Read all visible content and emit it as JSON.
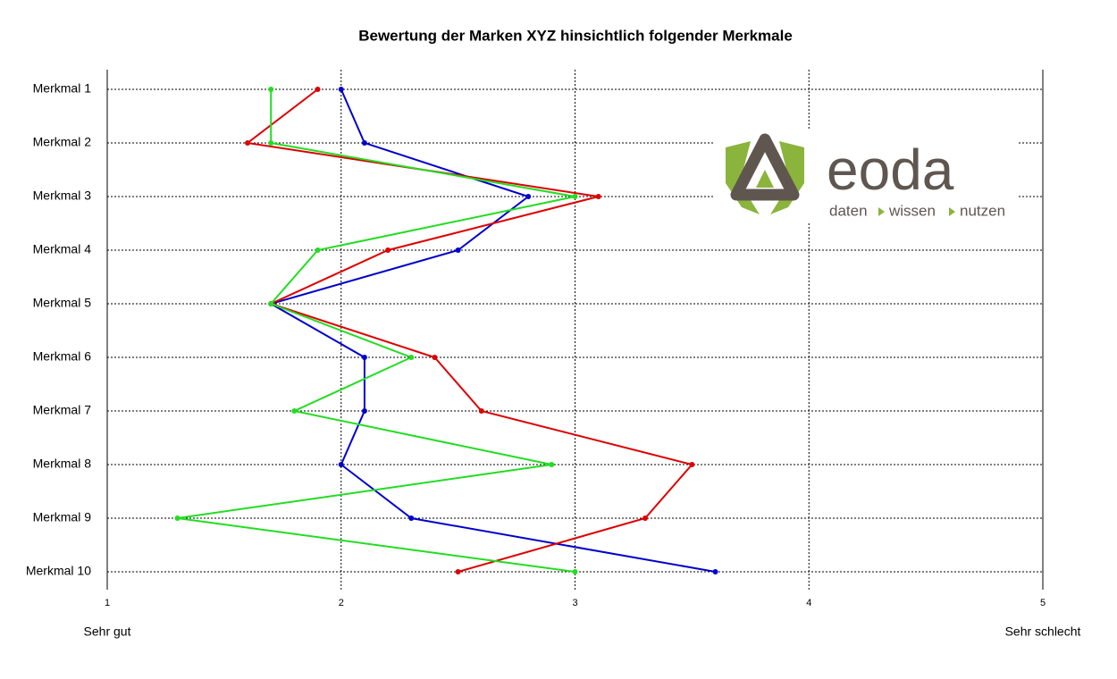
{
  "chart_data": {
    "type": "line",
    "title": "Bewertung der Marken XYZ hinsichtlich folgender Merkmale",
    "categories": [
      "Merkmal 1",
      "Merkmal 2",
      "Merkmal 3",
      "Merkmal 4",
      "Merkmal 5",
      "Merkmal 6",
      "Merkmal 7",
      "Merkmal 8",
      "Merkmal 9",
      "Merkmal 10"
    ],
    "series": [
      {
        "color": "#0000cc",
        "values": [
          2.0,
          2.1,
          2.8,
          2.5,
          1.7,
          2.1,
          2.1,
          2.0,
          2.3,
          3.6
        ]
      },
      {
        "color": "#dd0000",
        "values": [
          1.9,
          1.6,
          3.1,
          2.2,
          1.7,
          2.4,
          2.6,
          3.5,
          3.3,
          2.5
        ]
      },
      {
        "color": "#22dd22",
        "values": [
          1.7,
          1.7,
          3.0,
          1.9,
          1.7,
          2.3,
          1.8,
          2.9,
          1.3,
          3.0
        ]
      }
    ],
    "xlim": [
      1,
      5
    ],
    "xticks": [
      1,
      2,
      3,
      4,
      5
    ],
    "grid": true,
    "x_label_left": "Sehr gut",
    "x_label_right": "Sehr schlecht",
    "logo": {
      "text": "eoda",
      "tagline": [
        "daten",
        "wissen",
        "nutzen"
      ]
    }
  }
}
